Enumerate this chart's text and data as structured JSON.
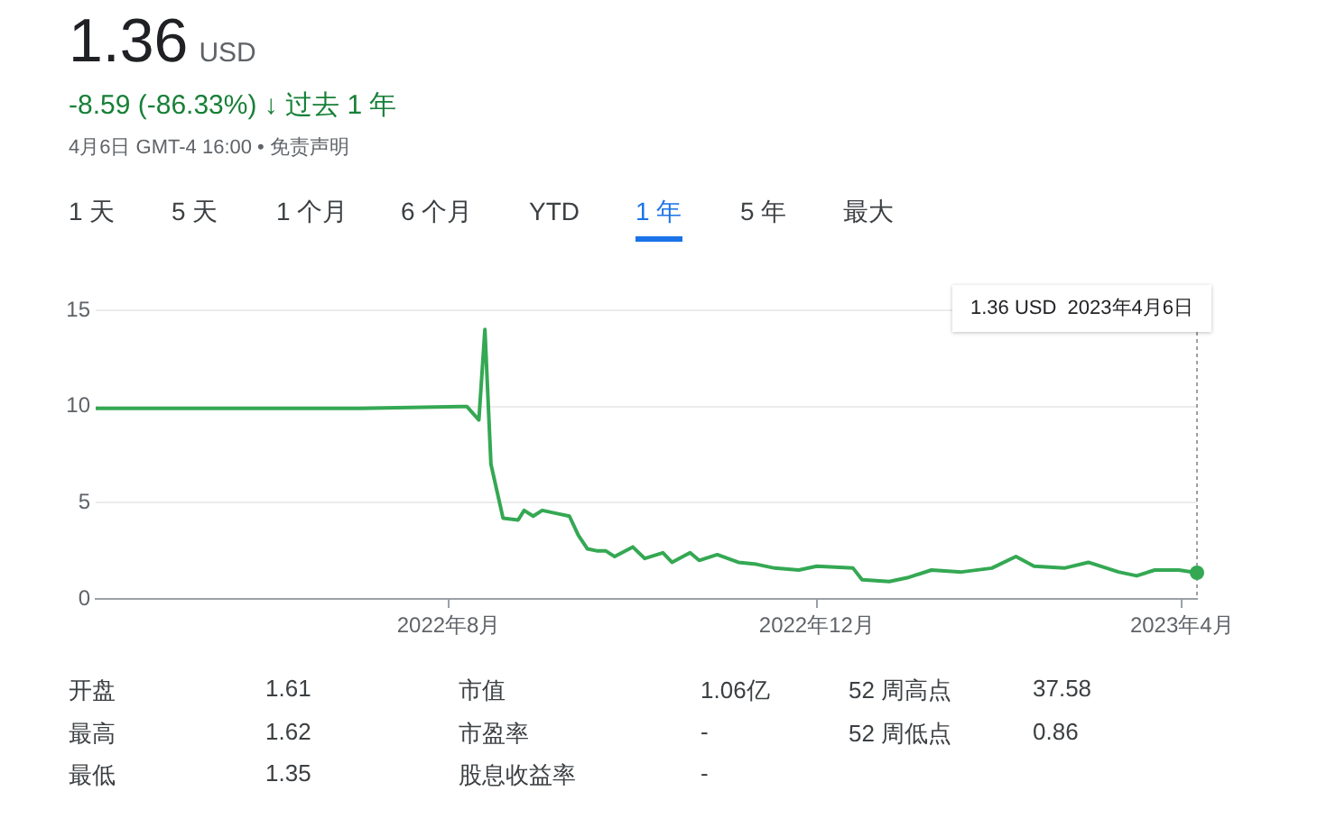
{
  "chart_data": {
    "type": "line",
    "title": "1.36 USD",
    "subtitle": "-8.59 (-86.33%) ↓ 过去 1 年",
    "annotations": [
      "4月6日 GMT-4 16:00 • 免责声明",
      "1 天",
      "5 天",
      "1 个月",
      "6 个月",
      "YTD",
      "1 年",
      "5 年",
      "最大",
      "1.36 USD  2023年4月6日",
      "开盘",
      "1.61",
      "市值",
      "1.06亿",
      "52 周高点",
      "37.58",
      "最高",
      "1.62",
      "市盈率",
      "-",
      "52 周低点",
      "0.86",
      "最低",
      "1.35",
      "股息收益率",
      "-"
    ],
    "x": [
      "2022-04-06",
      "2022-05-04",
      "2022-06-03",
      "2022-07-03",
      "2022-08-07",
      "2022-08-11",
      "2022-08-13",
      "2022-08-15",
      "2022-08-17",
      "2022-08-19",
      "2022-08-24",
      "2022-08-26",
      "2022-08-29",
      "2022-09-01",
      "2022-09-07",
      "2022-09-10",
      "2022-09-13",
      "2022-09-16",
      "2022-09-19",
      "2022-09-22",
      "2022-09-25",
      "2022-10-01",
      "2022-10-05",
      "2022-10-11",
      "2022-10-14",
      "2022-10-20",
      "2022-10-23",
      "2022-10-29",
      "2022-11-05",
      "2022-11-11",
      "2022-11-17",
      "2022-11-25",
      "2022-12-01",
      "2022-12-13",
      "2022-12-16",
      "2022-12-25",
      "2022-12-31",
      "2023-01-08",
      "2023-01-18",
      "2023-01-28",
      "2023-02-05",
      "2023-02-11",
      "2023-02-21",
      "2023-03-01",
      "2023-03-11",
      "2023-03-17",
      "2023-03-23",
      "2023-03-31",
      "2023-04-06"
    ],
    "series": [
      {
        "color": "#34a853",
        "values": [
          9.9,
          9.9,
          9.9,
          9.9,
          10.0,
          9.3,
          14.0,
          7.0,
          5.6,
          4.2,
          4.1,
          4.6,
          4.3,
          4.6,
          4.4,
          4.3,
          3.3,
          2.6,
          2.5,
          2.5,
          2.2,
          2.7,
          2.1,
          2.4,
          1.9,
          2.4,
          2.0,
          2.3,
          1.9,
          1.8,
          1.6,
          1.5,
          1.7,
          1.6,
          1.0,
          0.9,
          1.1,
          1.5,
          1.4,
          1.6,
          2.2,
          1.7,
          1.6,
          1.9,
          1.4,
          1.2,
          1.5,
          1.5,
          1.36
        ]
      }
    ],
    "xlim": [
      "2022-04-06",
      "2023-04-06"
    ],
    "xticks": [
      {
        "value": "2022-08-01",
        "label": "2022年8月"
      },
      {
        "value": "2022-12-01",
        "label": "2022年12月"
      },
      {
        "value": "2023-04-01",
        "label": "2023年4月"
      }
    ],
    "ylim": [
      0,
      15
    ],
    "yticks": [
      0,
      5,
      10,
      15
    ],
    "grid": "y",
    "legend": false,
    "marker": "none",
    "line_style": "solid"
  }
}
